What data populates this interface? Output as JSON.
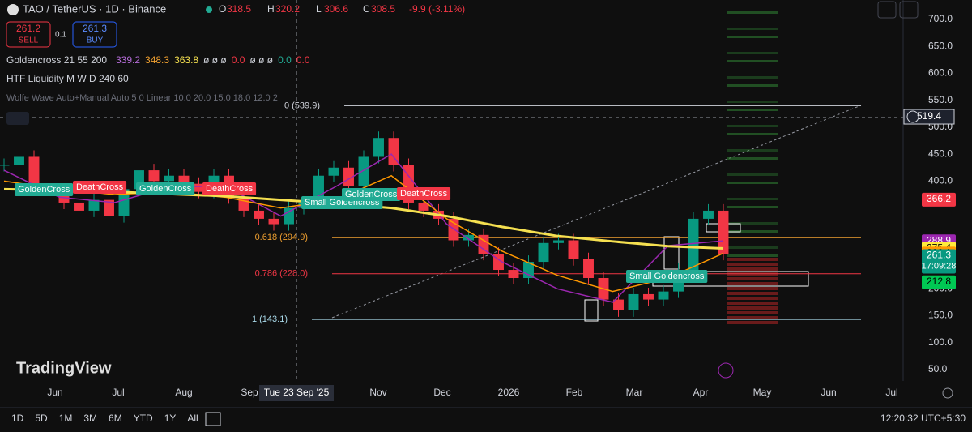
{
  "header": {
    "symbol": "TAO / TetherUS · 1D · Binance",
    "ohlc": [
      {
        "label": "O",
        "value": 318.5
      },
      {
        "label": "H",
        "value": 320.2
      },
      {
        "label": "L",
        "value": 306.6
      },
      {
        "label": "C",
        "value": 308.5
      }
    ],
    "change": "-9.9 (-3.11%)"
  },
  "trade": {
    "sell_price": 261.2,
    "sell": "SELL",
    "qty": 0.1,
    "buy_price": 261.3,
    "buy": "BUY"
  },
  "indicators": {
    "goldencross": {
      "name": "Goldencross 21 55 200",
      "values": [
        {
          "text": "339.2",
          "color": "#b36bd6"
        },
        {
          "text": "348.3",
          "color": "#f0a030"
        },
        {
          "text": "363.8",
          "color": "#f5e050"
        },
        {
          "text": "ø ø ø",
          "color": "#d1d4dc"
        },
        {
          "text": "0.0",
          "color": "#f23645"
        },
        {
          "text": "ø ø ø",
          "color": "#d1d4dc"
        },
        {
          "text": "0.0",
          "color": "#22ab94"
        },
        {
          "text": "0.0",
          "color": "#f23645"
        }
      ]
    },
    "htf": "HTF Liquidity M W D 240 60",
    "wolfe": "Wolfe Wave Auto+Manual Auto 5 0 Linear 10.0 20.0 15.0 18.0 12.0 2"
  },
  "chart": {
    "price_axis": [
      {
        "value": 700,
        "label": "700.0"
      },
      {
        "value": 650,
        "label": "650.0"
      },
      {
        "value": 600,
        "label": "600.0"
      },
      {
        "value": 550,
        "label": "550.0"
      },
      {
        "value": 500,
        "label": "500.0"
      },
      {
        "value": 450,
        "label": "450.0"
      },
      {
        "value": 400,
        "label": "400.0"
      },
      {
        "value": 200,
        "label": "200.0"
      },
      {
        "value": 150,
        "label": "150.0"
      },
      {
        "value": 100,
        "label": "100.0"
      },
      {
        "value": 50,
        "label": "50.0"
      }
    ],
    "time_axis": [
      "Jun",
      "Jul",
      "Aug",
      "Sep",
      "Nov",
      "Dec",
      "2026",
      "Feb",
      "Mar",
      "Apr",
      "May",
      "Jun",
      "Jul"
    ],
    "crosshair_time": "Tue 23 Sep '25",
    "crosshair_price": 519.4,
    "price_tags": [
      {
        "value": 366.2,
        "color": "#f23645"
      },
      {
        "value": 288.9,
        "color": "#9c27b0"
      },
      {
        "value": 275.4,
        "color": "#ffeb3b"
      },
      {
        "value": 266.1,
        "color": "#ff9800"
      },
      {
        "value": 261.3,
        "color": "#089981",
        "countdown": "17:09:28"
      },
      {
        "value": 212.8,
        "color": "#00c853"
      }
    ],
    "fib_levels": [
      {
        "label": "0 (539.9)",
        "price": 539.9,
        "color": "#d1d4dc"
      },
      {
        "label": "0.618 (294.9)",
        "price": 294.9,
        "color": "#f0a030"
      },
      {
        "label": "0.786 (228.0)",
        "price": 228,
        "color": "#f23645"
      },
      {
        "label": "1 (143.1)",
        "price": 143.1,
        "color": "#a8d8e8"
      }
    ],
    "closes": [
      430,
      445,
      395,
      380,
      360,
      345,
      365,
      335,
      385,
      420,
      400,
      410,
      395,
      380,
      410,
      370,
      345,
      330,
      320,
      350,
      360,
      410,
      425,
      390,
      445,
      480,
      430,
      360,
      345,
      330,
      290,
      300,
      265,
      235,
      220,
      250,
      285,
      290,
      255,
      220,
      180,
      160,
      190,
      180,
      195,
      235,
      330,
      345,
      265
    ],
    "ma_200": [
      385,
      383,
      380,
      376,
      372,
      365,
      358,
      350,
      335,
      315,
      298,
      288,
      279,
      275
    ],
    "ma_55": [
      400,
      385,
      375,
      380,
      370,
      350,
      365,
      410,
      330,
      270,
      225,
      195,
      220,
      266
    ],
    "ma_21": [
      420,
      370,
      360,
      390,
      390,
      335,
      390,
      450,
      320,
      250,
      200,
      175,
      280,
      289
    ],
    "annotations": [
      {
        "text": "GoldenCross",
        "color": "#22ab94"
      },
      {
        "text": "DeathCross",
        "color": "#f23645"
      },
      {
        "text": "GoldenCross",
        "color": "#22ab94"
      },
      {
        "text": "DeathCross",
        "color": "#f23645"
      },
      {
        "text": "Small Goldencross",
        "color": "#22ab94"
      },
      {
        "text": "GoldenCross",
        "color": "#22ab94"
      },
      {
        "text": "DeathCross",
        "color": "#f23645"
      },
      {
        "text": "Small Goldencross",
        "color": "#22ab94"
      }
    ],
    "watermark": "TradingView"
  },
  "toolbar": {
    "ranges": [
      "1D",
      "5D",
      "1M",
      "3M",
      "6M",
      "YTD",
      "1Y",
      "All"
    ],
    "clock": "12:20:32 UTC+5:30"
  }
}
